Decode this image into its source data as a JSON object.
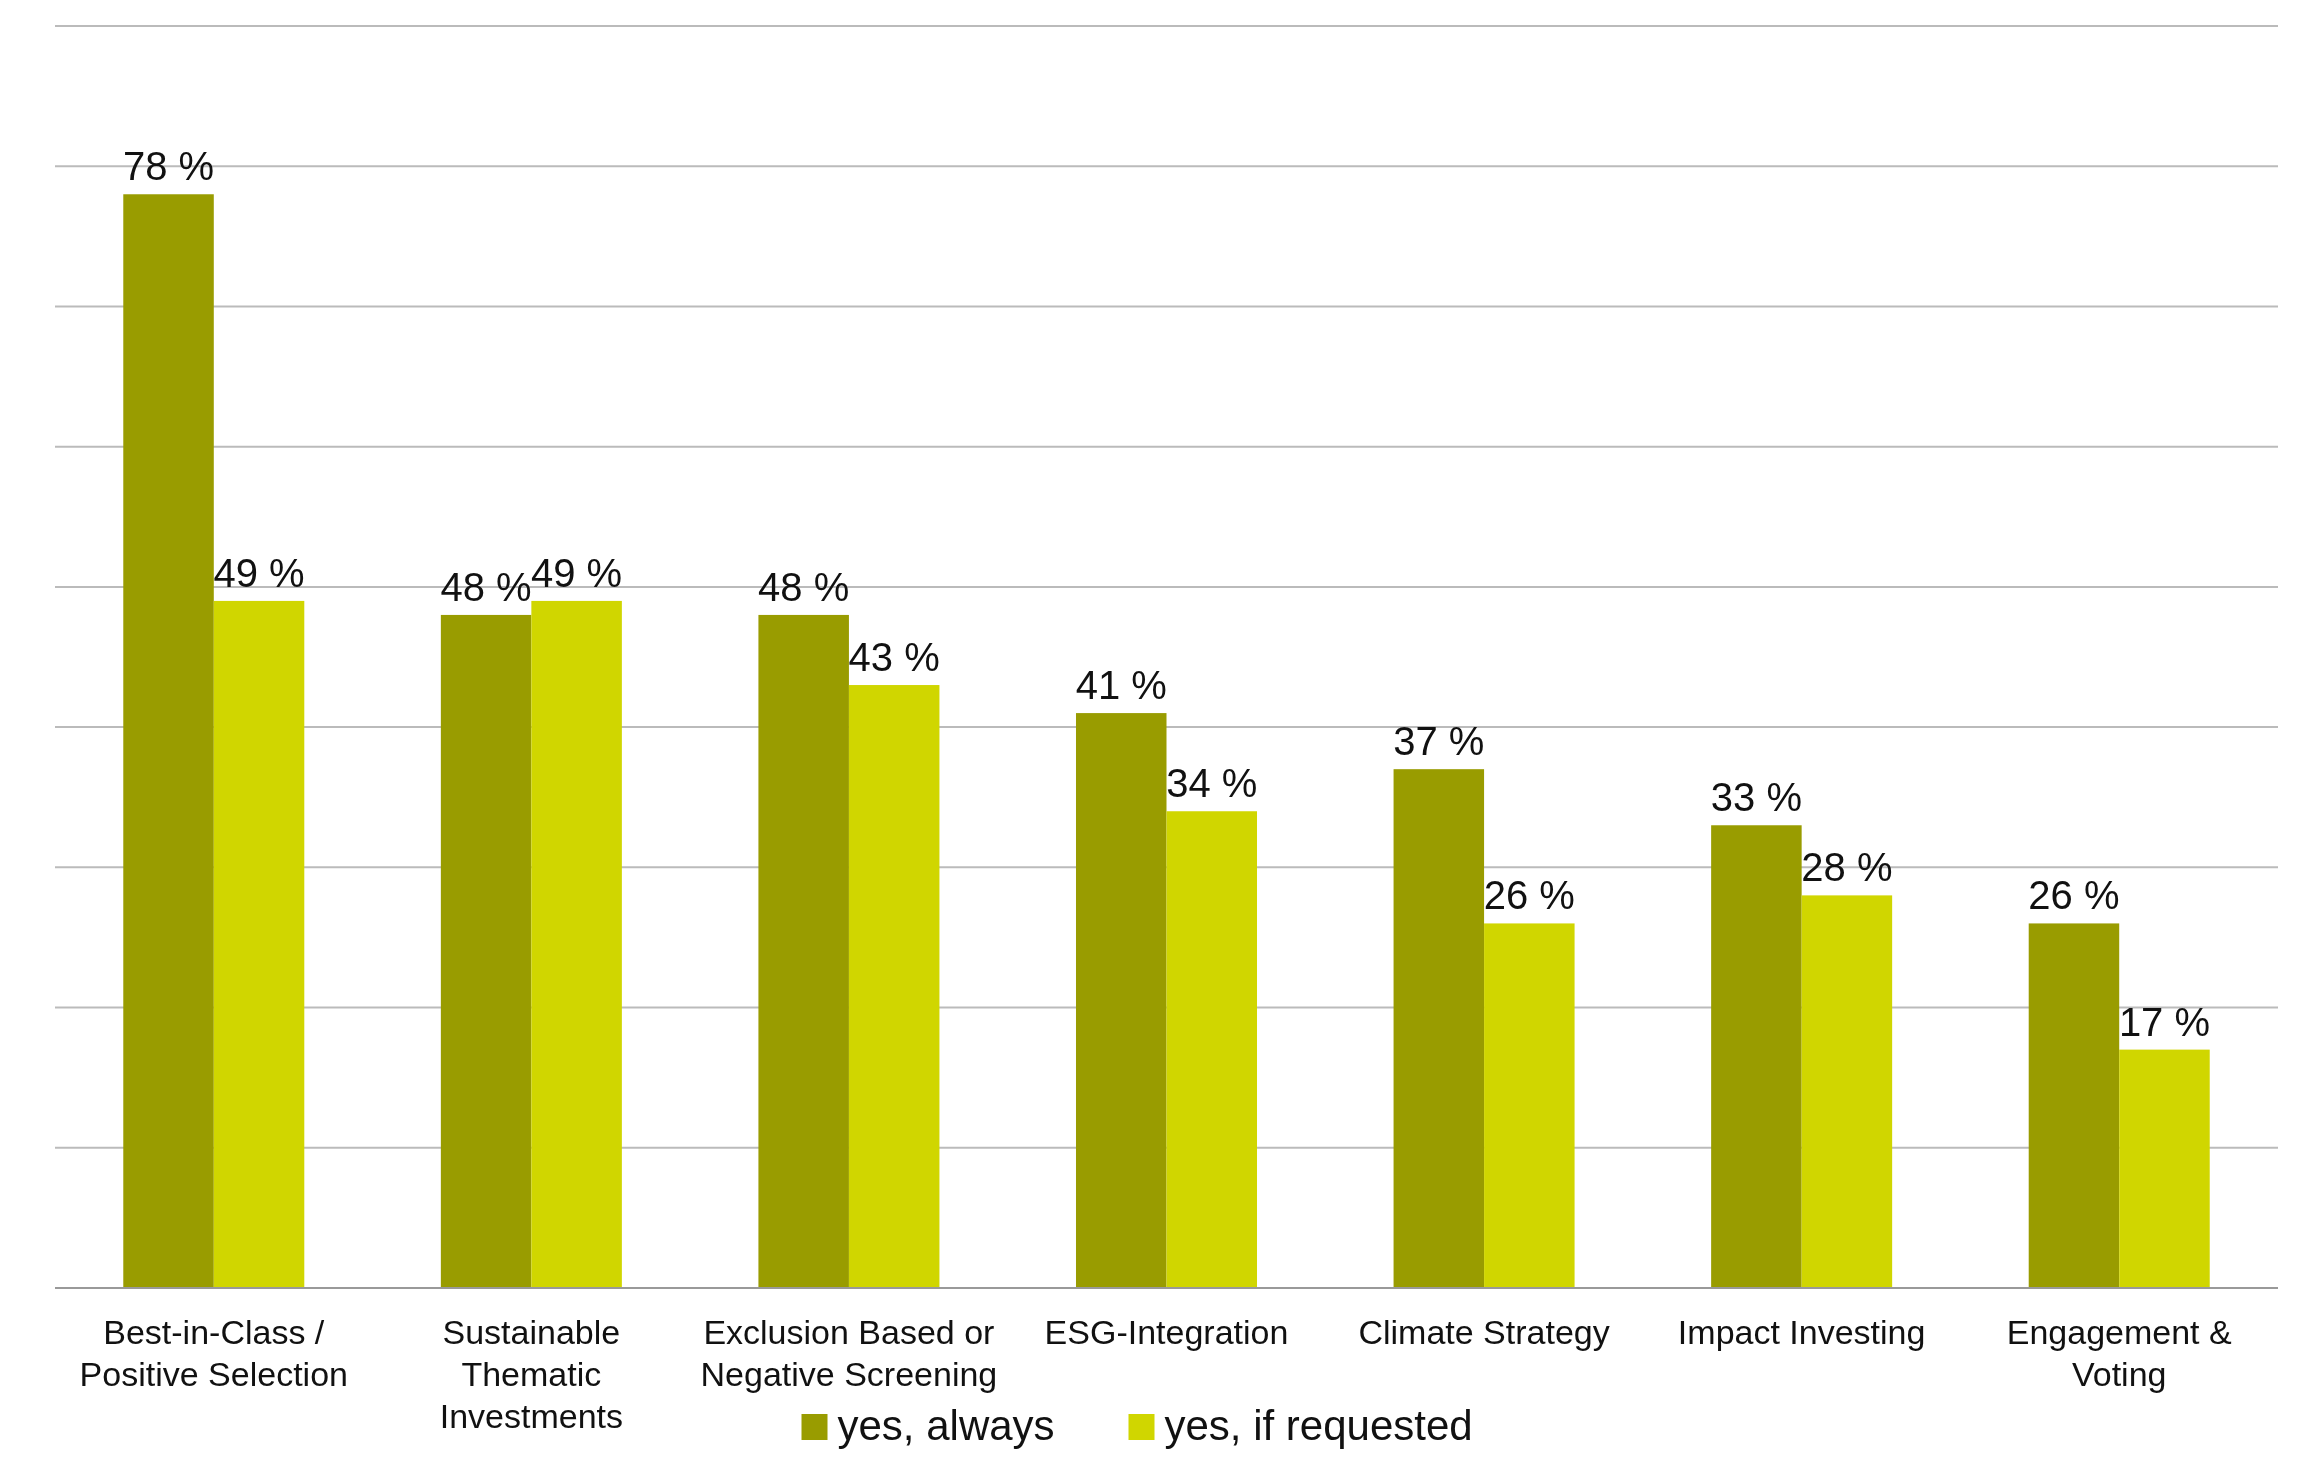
{
  "chart_data": {
    "type": "bar",
    "categories": [
      "Best-in-Class / Positive Selection",
      "Sustainable Thematic Investments",
      "Exclusion Based or Negative Screening",
      "ESG-Integration",
      "Climate Strategy",
      "Impact Investing",
      "Engagement & Voting"
    ],
    "series": [
      {
        "name": "yes, always",
        "color": "#999c00",
        "values": [
          78,
          48,
          48,
          41,
          37,
          33,
          26
        ],
        "value_labels": [
          "78 %",
          "48 %",
          "48 %",
          "41 %",
          "37 %",
          "33 %",
          "26 %"
        ]
      },
      {
        "name": "yes, if requested",
        "color": "#d0d600",
        "values": [
          49,
          49,
          43,
          34,
          26,
          28,
          17
        ],
        "value_labels": [
          "49 %",
          "49 %",
          "43 %",
          "34 %",
          "26 %",
          "28 %",
          "17 %"
        ]
      }
    ],
    "ylim": [
      0,
      90
    ],
    "yticks": [
      {
        "value": 0,
        "label": null
      },
      {
        "value": 10,
        "label": null
      },
      {
        "value": 20,
        "label": null
      },
      {
        "value": 30,
        "label": null
      },
      {
        "value": 40,
        "label": null
      },
      {
        "value": 50,
        "label": null
      },
      {
        "value": 60,
        "label": null
      },
      {
        "value": 70,
        "label": null
      },
      {
        "value": 80,
        "label": null
      },
      {
        "value": 90,
        "label": null
      }
    ],
    "grid": "y",
    "tick_labels": "x",
    "legend": "bottom"
  }
}
